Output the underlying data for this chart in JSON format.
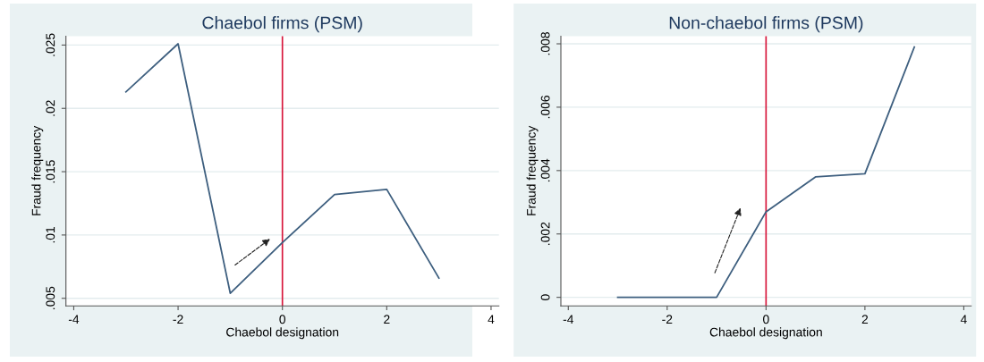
{
  "chart_data": [
    {
      "type": "line",
      "title": "Chaebol firms (PSM)",
      "xlabel": "Chaebol designation",
      "ylabel": "Fraud frequency",
      "x": [
        -3,
        -2,
        -1,
        0,
        1,
        2,
        3
      ],
      "series": [
        {
          "color": "#3e5f7f",
          "values": [
            0.0213,
            0.0251,
            0.0054,
            0.0094,
            0.0132,
            0.0136,
            0.0066
          ]
        }
      ],
      "xlim": [
        -4.15,
        4.15
      ],
      "ylim": [
        0.0044,
        0.0257
      ],
      "xticks": [
        -4,
        -2,
        0,
        2,
        4
      ],
      "yticks": [
        {
          "value": 0.005,
          "label": ".005"
        },
        {
          "value": 0.01,
          "label": ".01"
        },
        {
          "value": 0.015,
          "label": ".015"
        },
        {
          "value": 0.02,
          "label": ".02"
        },
        {
          "value": 0.025,
          "label": ".025"
        }
      ],
      "ref_lines": [
        {
          "axis": "x",
          "value": 0,
          "color": "#d7153a"
        }
      ],
      "grid": "y",
      "line_style": "solid"
    },
    {
      "type": "line",
      "title": "Non-chaebol firms (PSM)",
      "xlabel": "Chaebol designation",
      "ylabel": "Fraud frequency",
      "x": [
        -3,
        -2,
        -1,
        0,
        1,
        2,
        3
      ],
      "series": [
        {
          "color": "#3e5f7f",
          "values": [
            0,
            0,
            0,
            0.0027,
            0.0038,
            0.0039,
            0.0079
          ]
        }
      ],
      "xlim": [
        -4.15,
        4.15
      ],
      "ylim": [
        -0.00027,
        0.00824
      ],
      "xticks": [
        -4,
        -2,
        0,
        2,
        4
      ],
      "yticks": [
        0,
        {
          "value": 0.002,
          "label": ".002"
        },
        {
          "value": 0.004,
          "label": ".004"
        },
        {
          "value": 0.006,
          "label": ".006"
        },
        {
          "value": 0.008,
          "label": ".008"
        }
      ],
      "ref_lines": [
        {
          "axis": "x",
          "value": 0,
          "color": "#d7153a"
        }
      ],
      "grid": "y",
      "line_style": "solid"
    }
  ]
}
